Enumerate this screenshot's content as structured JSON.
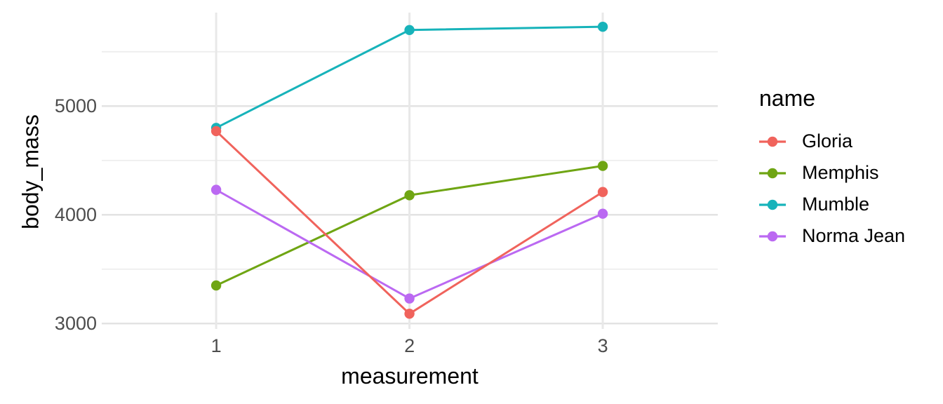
{
  "chart_data": {
    "type": "line",
    "xlabel": "measurement",
    "ylabel": "body_mass",
    "legend_title": "name",
    "legend_position": "right",
    "x": [
      1,
      2,
      3
    ],
    "x_tick_labels": [
      "1",
      "2",
      "3"
    ],
    "y_tick_values": [
      3000,
      4000,
      5000
    ],
    "y_tick_labels": [
      "3000",
      "4000",
      "5000"
    ],
    "y_minor_tick_values": [
      3500,
      4500,
      5500
    ],
    "xlim": [
      0.408,
      3.595
    ],
    "ylim": [
      2950,
      5860
    ],
    "series": [
      {
        "name": "Gloria",
        "color": "#F0635C",
        "values": [
          4770,
          3090,
          4210
        ]
      },
      {
        "name": "Memphis",
        "color": "#6FA513",
        "values": [
          3350,
          4180,
          4450
        ]
      },
      {
        "name": "Mumble",
        "color": "#17B3BA",
        "values": [
          4800,
          5700,
          5730
        ]
      },
      {
        "name": "Norma Jean",
        "color": "#BB69F2",
        "values": [
          4230,
          3230,
          4010
        ]
      }
    ],
    "draw_order": [
      "Memphis",
      "Mumble",
      "Norma Jean",
      "Gloria"
    ],
    "style": {
      "background": "#FFFFFF",
      "grid_major_color": "#E3E3E3",
      "grid_minor_color": "#EDEDED",
      "grid_vertical_color": "#E8E8E8",
      "tick_label_color": "#4D4D4D",
      "title_color": "#000000",
      "line_width": 3,
      "point_radius": 7.2,
      "grid": "horizontal major+minor, vertical major only"
    }
  }
}
